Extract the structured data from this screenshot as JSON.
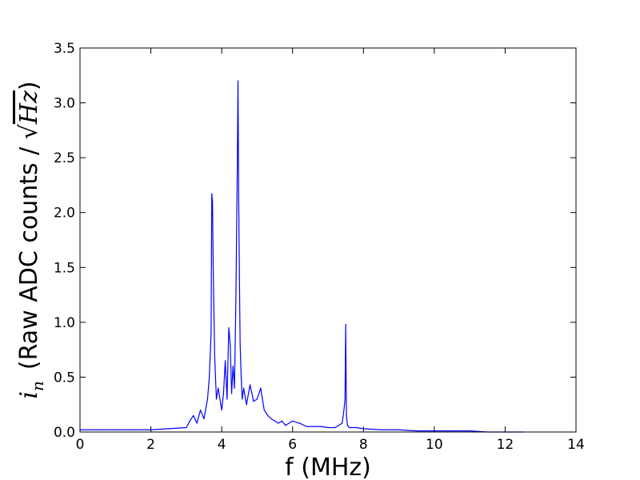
{
  "chart_data": {
    "type": "line",
    "xlabel": "f (MHz)",
    "ylabel": {
      "symbol": "i",
      "subscript": "n",
      "text": "(Raw ADC counts / ",
      "sqrt_symbol": "√",
      "radicand": "Hz",
      "close": ")"
    },
    "xlim": [
      0,
      14
    ],
    "ylim": [
      0,
      3.5
    ],
    "xticks": [
      0,
      2,
      4,
      6,
      8,
      10,
      12,
      14
    ],
    "yticks": [
      0.0,
      0.5,
      1.0,
      1.5,
      2.0,
      2.5,
      3.0,
      3.5
    ],
    "xtick_labels": [
      "0",
      "2",
      "4",
      "6",
      "8",
      "10",
      "12",
      "14"
    ],
    "ytick_labels": [
      "0.0",
      "0.5",
      "1.0",
      "1.5",
      "2.0",
      "2.5",
      "3.0",
      "3.5"
    ],
    "grid": false,
    "series": [
      {
        "color": "#0000ff",
        "x": [
          0.0,
          0.5,
          1.0,
          1.5,
          2.0,
          2.5,
          3.0,
          3.1,
          3.2,
          3.3,
          3.4,
          3.5,
          3.6,
          3.65,
          3.7,
          3.72,
          3.74,
          3.76,
          3.8,
          3.85,
          3.9,
          4.0,
          4.05,
          4.1,
          4.15,
          4.2,
          4.24,
          4.28,
          4.32,
          4.36,
          4.4,
          4.44,
          4.46,
          4.48,
          4.5,
          4.52,
          4.55,
          4.58,
          4.62,
          4.7,
          4.8,
          4.9,
          5.0,
          5.1,
          5.2,
          5.3,
          5.4,
          5.5,
          5.6,
          5.7,
          5.8,
          6.0,
          6.2,
          6.4,
          6.6,
          6.8,
          7.0,
          7.2,
          7.4,
          7.45,
          7.48,
          7.5,
          7.52,
          7.55,
          7.6,
          7.8,
          8.0,
          8.5,
          9.0,
          9.5,
          10.0,
          10.5,
          11.0,
          11.5,
          12.0,
          12.5
        ],
        "y": [
          0.02,
          0.02,
          0.02,
          0.02,
          0.02,
          0.03,
          0.04,
          0.1,
          0.15,
          0.08,
          0.2,
          0.12,
          0.3,
          0.5,
          0.9,
          2.17,
          2.1,
          1.5,
          0.7,
          0.3,
          0.4,
          0.2,
          0.35,
          0.65,
          0.3,
          0.95,
          0.8,
          0.35,
          0.6,
          0.4,
          1.2,
          2.42,
          3.2,
          2.1,
          1.4,
          0.8,
          0.5,
          0.3,
          0.4,
          0.25,
          0.43,
          0.28,
          0.3,
          0.4,
          0.2,
          0.15,
          0.12,
          0.1,
          0.08,
          0.1,
          0.06,
          0.1,
          0.08,
          0.05,
          0.05,
          0.05,
          0.04,
          0.04,
          0.08,
          0.2,
          0.3,
          0.98,
          0.15,
          0.06,
          0.04,
          0.04,
          0.03,
          0.02,
          0.02,
          0.01,
          0.01,
          0.01,
          0.01,
          0.0,
          0.0,
          0.0
        ]
      }
    ]
  }
}
